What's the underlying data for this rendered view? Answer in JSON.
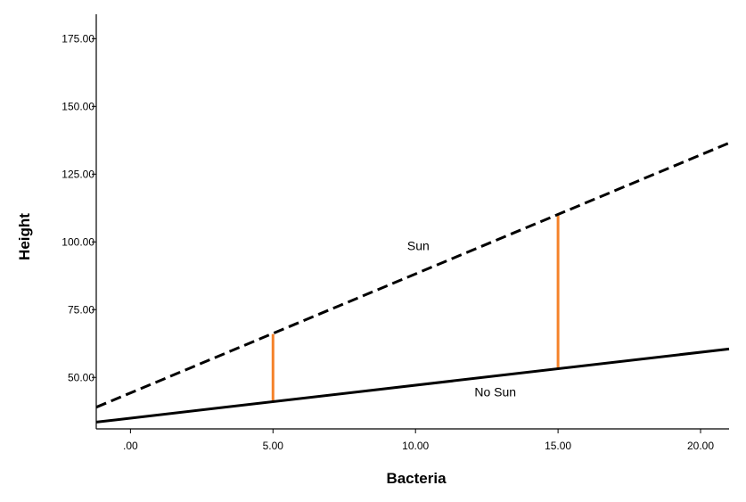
{
  "chart_data": {
    "type": "line",
    "xlabel": "Bacteria",
    "ylabel": "Height",
    "xlim": [
      -1.2,
      21.0
    ],
    "ylim": [
      31.0,
      184.0
    ],
    "x_ticks": [
      {
        "value": 0,
        "label": ".00"
      },
      {
        "value": 5,
        "label": "5.00"
      },
      {
        "value": 10,
        "label": "10.00"
      },
      {
        "value": 15,
        "label": "15.00"
      },
      {
        "value": 20,
        "label": "20.00"
      }
    ],
    "y_ticks": [
      {
        "value": 50,
        "label": "50.00"
      },
      {
        "value": 75,
        "label": "75.00"
      },
      {
        "value": 100,
        "label": "100.00"
      },
      {
        "value": 125,
        "label": "125.00"
      },
      {
        "value": 150,
        "label": "150.00"
      },
      {
        "value": 175,
        "label": "175.00"
      }
    ],
    "series": [
      {
        "name": "Sun",
        "style": "dashed",
        "color": "#000000",
        "x": [
          -1.2,
          21.0
        ],
        "y": [
          39.0,
          136.5
        ],
        "label_pos": {
          "x": 10.1,
          "y": 97.0
        }
      },
      {
        "name": "No Sun",
        "style": "solid",
        "color": "#000000",
        "x": [
          -1.2,
          21.0
        ],
        "y": [
          33.5,
          60.5
        ],
        "label_pos": {
          "x": 12.8,
          "y": 43.0
        }
      }
    ],
    "difference_segments": [
      {
        "x": 5,
        "y_low": 41.0,
        "y_high": 66.0,
        "color": "#f5822a"
      },
      {
        "x": 15,
        "y_low": 53.0,
        "y_high": 110.0,
        "color": "#f5822a"
      }
    ],
    "grid": false,
    "legend": "none"
  }
}
